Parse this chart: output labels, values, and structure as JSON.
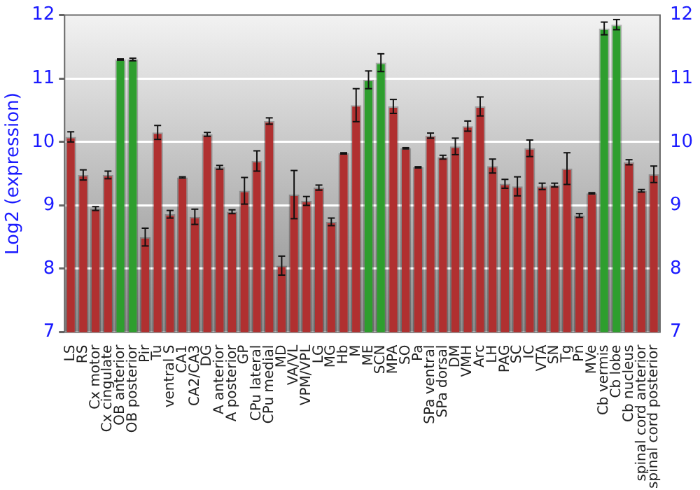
{
  "chart_data": {
    "type": "bar",
    "ylabel": "Log2 (expression)",
    "categories": [
      "LS",
      "RS",
      "Cx motor",
      "Cx cingulate",
      "OB anterior",
      "OB posterior",
      "Pir",
      "Tu",
      "ventral S",
      "CA1",
      "CA2/CA3",
      "DG",
      "A anterior",
      "A posterior",
      "GP",
      "CPu lateral",
      "CPu medial",
      "MD",
      "VA/VL",
      "VPM/VPL",
      "LG",
      "MG",
      "Hb",
      "M",
      "ME",
      "SCN",
      "MPA",
      "SO",
      "Pa",
      "SPa ventral",
      "SPa dorsal",
      "DM",
      "VMH",
      "Arc",
      "LH",
      "PAG",
      "SC",
      "IC",
      "VTA",
      "SN",
      "Tg",
      "Pn",
      "MVe",
      "Cb vermis",
      "Cb lobe",
      "Cb nucleus",
      "spinal cord anterior",
      "spinal cord posterior"
    ],
    "values": [
      10.08,
      9.48,
      8.95,
      9.48,
      11.3,
      11.3,
      8.5,
      10.15,
      8.86,
      9.44,
      8.82,
      10.12,
      9.6,
      8.9,
      9.23,
      9.7,
      10.33,
      8.05,
      9.17,
      9.07,
      9.28,
      8.74,
      9.82,
      10.58,
      10.98,
      11.25,
      10.56,
      9.9,
      9.6,
      10.1,
      9.76,
      9.93,
      10.25,
      10.56,
      9.62,
      9.34,
      9.3,
      9.9,
      9.3,
      9.32,
      9.58,
      8.84,
      9.19,
      11.79,
      11.85,
      9.68,
      9.23,
      9.49
    ],
    "errors": [
      0.08,
      0.08,
      0.03,
      0.06,
      0.01,
      0.02,
      0.14,
      0.11,
      0.06,
      0.01,
      0.12,
      0.03,
      0.03,
      0.03,
      0.21,
      0.16,
      0.05,
      0.15,
      0.38,
      0.07,
      0.04,
      0.06,
      0.01,
      0.26,
      0.14,
      0.14,
      0.11,
      0.01,
      0.01,
      0.04,
      0.03,
      0.13,
      0.08,
      0.15,
      0.11,
      0.07,
      0.15,
      0.13,
      0.05,
      0.03,
      0.25,
      0.03,
      0.01,
      0.1,
      0.08,
      0.04,
      0.02,
      0.13
    ],
    "colors": [
      "#b03030",
      "#b03030",
      "#b03030",
      "#b03030",
      "#2e9e2e",
      "#2e9e2e",
      "#b03030",
      "#b03030",
      "#b03030",
      "#b03030",
      "#b03030",
      "#b03030",
      "#b03030",
      "#b03030",
      "#b03030",
      "#b03030",
      "#b03030",
      "#b03030",
      "#b03030",
      "#b03030",
      "#b03030",
      "#b03030",
      "#b03030",
      "#b03030",
      "#2e9e2e",
      "#2e9e2e",
      "#b03030",
      "#b03030",
      "#b03030",
      "#b03030",
      "#b03030",
      "#b03030",
      "#b03030",
      "#b03030",
      "#b03030",
      "#b03030",
      "#b03030",
      "#b03030",
      "#b03030",
      "#b03030",
      "#b03030",
      "#b03030",
      "#b03030",
      "#2e9e2e",
      "#2e9e2e",
      "#b03030",
      "#b03030",
      "#b03030"
    ],
    "ylim": [
      7,
      12
    ],
    "yticks": [
      7,
      8,
      9,
      10,
      11,
      12
    ],
    "y2lim": [
      7,
      12
    ],
    "y2ticks": [
      7,
      8,
      9,
      10,
      11,
      12
    ],
    "grid": "y",
    "legend": false
  }
}
